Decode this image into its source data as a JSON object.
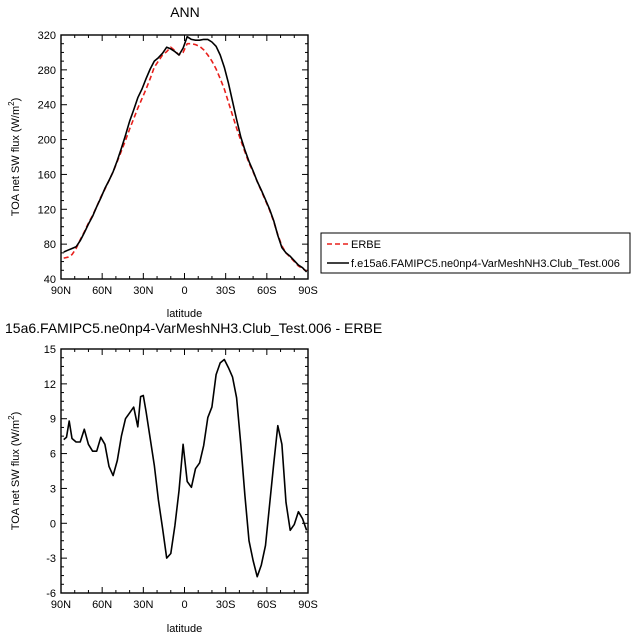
{
  "chart_data": [
    {
      "type": "line",
      "title": "ANN",
      "xlabel": "latitude",
      "ylabel": "TOA net SW flux (W/m",
      "ylabel_sup": "2",
      "ylabel_close": ")",
      "xlim": [
        90,
        -90
      ],
      "ylim": [
        40,
        320
      ],
      "xticks": [
        90,
        60,
        30,
        0,
        -30,
        -60,
        -90
      ],
      "xtick_labels": [
        "90N",
        "60N",
        "30N",
        "0",
        "30S",
        "60S",
        "90S"
      ],
      "yticks": [
        40,
        80,
        120,
        160,
        200,
        240,
        280,
        320
      ],
      "ytick_labels": [
        "40",
        "80",
        "120",
        "160",
        "200",
        "240",
        "280",
        "320"
      ],
      "legend_position": "right",
      "series": [
        {
          "name": "ERBE",
          "color": "#e8201c",
          "dashed": true,
          "x": [
            88,
            85,
            82,
            79,
            76,
            73,
            70,
            67,
            64,
            61,
            58,
            55,
            52,
            49,
            46,
            43,
            40,
            37,
            34,
            31,
            28,
            25,
            22,
            19,
            16,
            13,
            10,
            7,
            4,
            1,
            -2,
            -5,
            -8,
            -11,
            -14,
            -17,
            -20,
            -23,
            -26,
            -29,
            -32,
            -35,
            -38,
            -41,
            -44,
            -47,
            -50,
            -53,
            -56,
            -59,
            -62,
            -65,
            -68,
            -71,
            -74,
            -77,
            -80,
            -83,
            -86,
            -89
          ],
          "y": [
            64,
            65,
            68,
            75,
            85,
            94,
            104,
            113,
            123,
            134,
            143,
            153,
            163,
            175,
            187,
            199,
            212,
            224,
            236,
            247,
            258,
            270,
            283,
            290,
            297,
            301,
            306,
            302,
            297,
            300,
            310,
            310,
            309,
            307,
            303,
            297,
            290,
            281,
            270,
            258,
            243,
            228,
            213,
            199,
            186,
            173,
            163,
            152,
            141,
            130,
            119,
            106,
            91,
            78,
            70,
            65,
            60,
            55,
            52,
            49
          ]
        },
        {
          "name": "f.e15a6.FAMIPC5.ne0np4-VarMeshNH3.Club_Test.006",
          "color": "#000000",
          "dashed": false,
          "x": [
            88,
            85,
            82,
            79,
            76,
            73,
            70,
            67,
            64,
            61,
            58,
            55,
            52,
            49,
            46,
            43,
            40,
            37,
            34,
            31,
            28,
            25,
            22,
            19,
            16,
            13,
            10,
            7,
            4,
            1,
            -2,
            -5,
            -8,
            -11,
            -14,
            -17,
            -20,
            -23,
            -26,
            -29,
            -32,
            -35,
            -38,
            -41,
            -44,
            -47,
            -50,
            -53,
            -56,
            -59,
            -62,
            -65,
            -68,
            -71,
            -74,
            -77,
            -80,
            -83,
            -86,
            -89
          ],
          "y": [
            71,
            73,
            75,
            77,
            84,
            93,
            103,
            112,
            123,
            133,
            144,
            153,
            163,
            176,
            190,
            205,
            221,
            234,
            248,
            258,
            270,
            281,
            290,
            294,
            299,
            306,
            304,
            301,
            297,
            305,
            318,
            315,
            314,
            314,
            315,
            315,
            312,
            307,
            297,
            283,
            265,
            244,
            223,
            203,
            188,
            175,
            164,
            152,
            142,
            131,
            120,
            107,
            90,
            76,
            70,
            66,
            61,
            56,
            53,
            48
          ]
        }
      ]
    },
    {
      "type": "line",
      "title": "15a6.FAMIPC5.ne0np4-VarMeshNH3.Club_Test.006 - ERBE",
      "xlabel": "latitude",
      "ylabel": "TOA net SW flux (W/m",
      "ylabel_sup": "2",
      "ylabel_close": ")",
      "xlim": [
        90,
        -90
      ],
      "ylim": [
        -6,
        15
      ],
      "xticks": [
        90,
        60,
        30,
        0,
        -30,
        -60,
        -90
      ],
      "xtick_labels": [
        "90N",
        "60N",
        "30N",
        "0",
        "30S",
        "60S",
        "90S"
      ],
      "yticks": [
        -6,
        -3,
        0,
        3,
        6,
        9,
        12,
        15
      ],
      "ytick_labels": [
        "-6",
        "-3",
        "0",
        "3",
        "6",
        "9",
        "12",
        "15"
      ],
      "series": [
        {
          "color": "#000000",
          "x": [
            88,
            86,
            84,
            82,
            79,
            76,
            73,
            70,
            67,
            64,
            61,
            58,
            55,
            52,
            49,
            46,
            43,
            40,
            37,
            34,
            32,
            30,
            28,
            25,
            22,
            19,
            16,
            13,
            10,
            7,
            4,
            1,
            -2,
            -5,
            -8,
            -11,
            -14,
            -17,
            -20,
            -23,
            -26,
            -29,
            -32,
            -35,
            -38,
            -41,
            -44,
            -47,
            -50,
            -53,
            -56,
            -59,
            -62,
            -65,
            -68,
            -71,
            -74,
            -77,
            -80,
            -83,
            -86,
            -89
          ],
          "y": [
            7.2,
            7.4,
            8.8,
            7.3,
            7.0,
            7.0,
            8.1,
            6.8,
            6.2,
            6.2,
            7.4,
            6.8,
            4.9,
            4.1,
            5.4,
            7.5,
            9.0,
            9.5,
            10.0,
            8.3,
            10.9,
            11.0,
            9.6,
            7.3,
            5.0,
            2.0,
            -0.4,
            -3.0,
            -2.6,
            -0.2,
            2.8,
            6.8,
            3.6,
            3.1,
            4.7,
            5.2,
            6.7,
            9.1,
            10.0,
            12.8,
            13.8,
            14.1,
            13.4,
            12.6,
            10.8,
            6.8,
            2.4,
            -1.5,
            -3.2,
            -4.6,
            -3.6,
            -1.9,
            1.6,
            5.1,
            8.4,
            6.8,
            1.8,
            -0.6,
            -0.1,
            1.0,
            0.4,
            -0.6
          ]
        }
      ]
    }
  ]
}
